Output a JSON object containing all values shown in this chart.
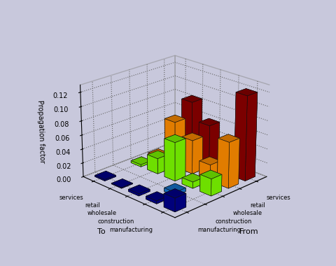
{
  "xlabel": "From",
  "ylabel": "To",
  "zlabel": "Propagation factor",
  "categories": [
    "manufacturing",
    "construction",
    "wholesale",
    "retail",
    "services"
  ],
  "zlim": [
    0,
    0.13
  ],
  "zticks": [
    0,
    0.02,
    0.04,
    0.06,
    0.08,
    0.1,
    0.12
  ],
  "colors": [
    "#00008B",
    "#1874CD",
    "#7CFC00",
    "#FF8C00",
    "#8B0000"
  ],
  "data": [
    [
      0.019,
      0.004,
      0.003,
      0.001,
      0.002
    ],
    [
      0.0,
      0.005,
      0.0,
      0.0,
      0.0
    ],
    [
      0.024,
      0.009,
      0.055,
      0.022,
      0.003
    ],
    [
      0.065,
      0.023,
      0.048,
      0.065,
      0.005
    ],
    [
      0.12,
      0.008,
      0.06,
      0.085,
      0.015
    ]
  ],
  "background_color": "#c8c8dc"
}
